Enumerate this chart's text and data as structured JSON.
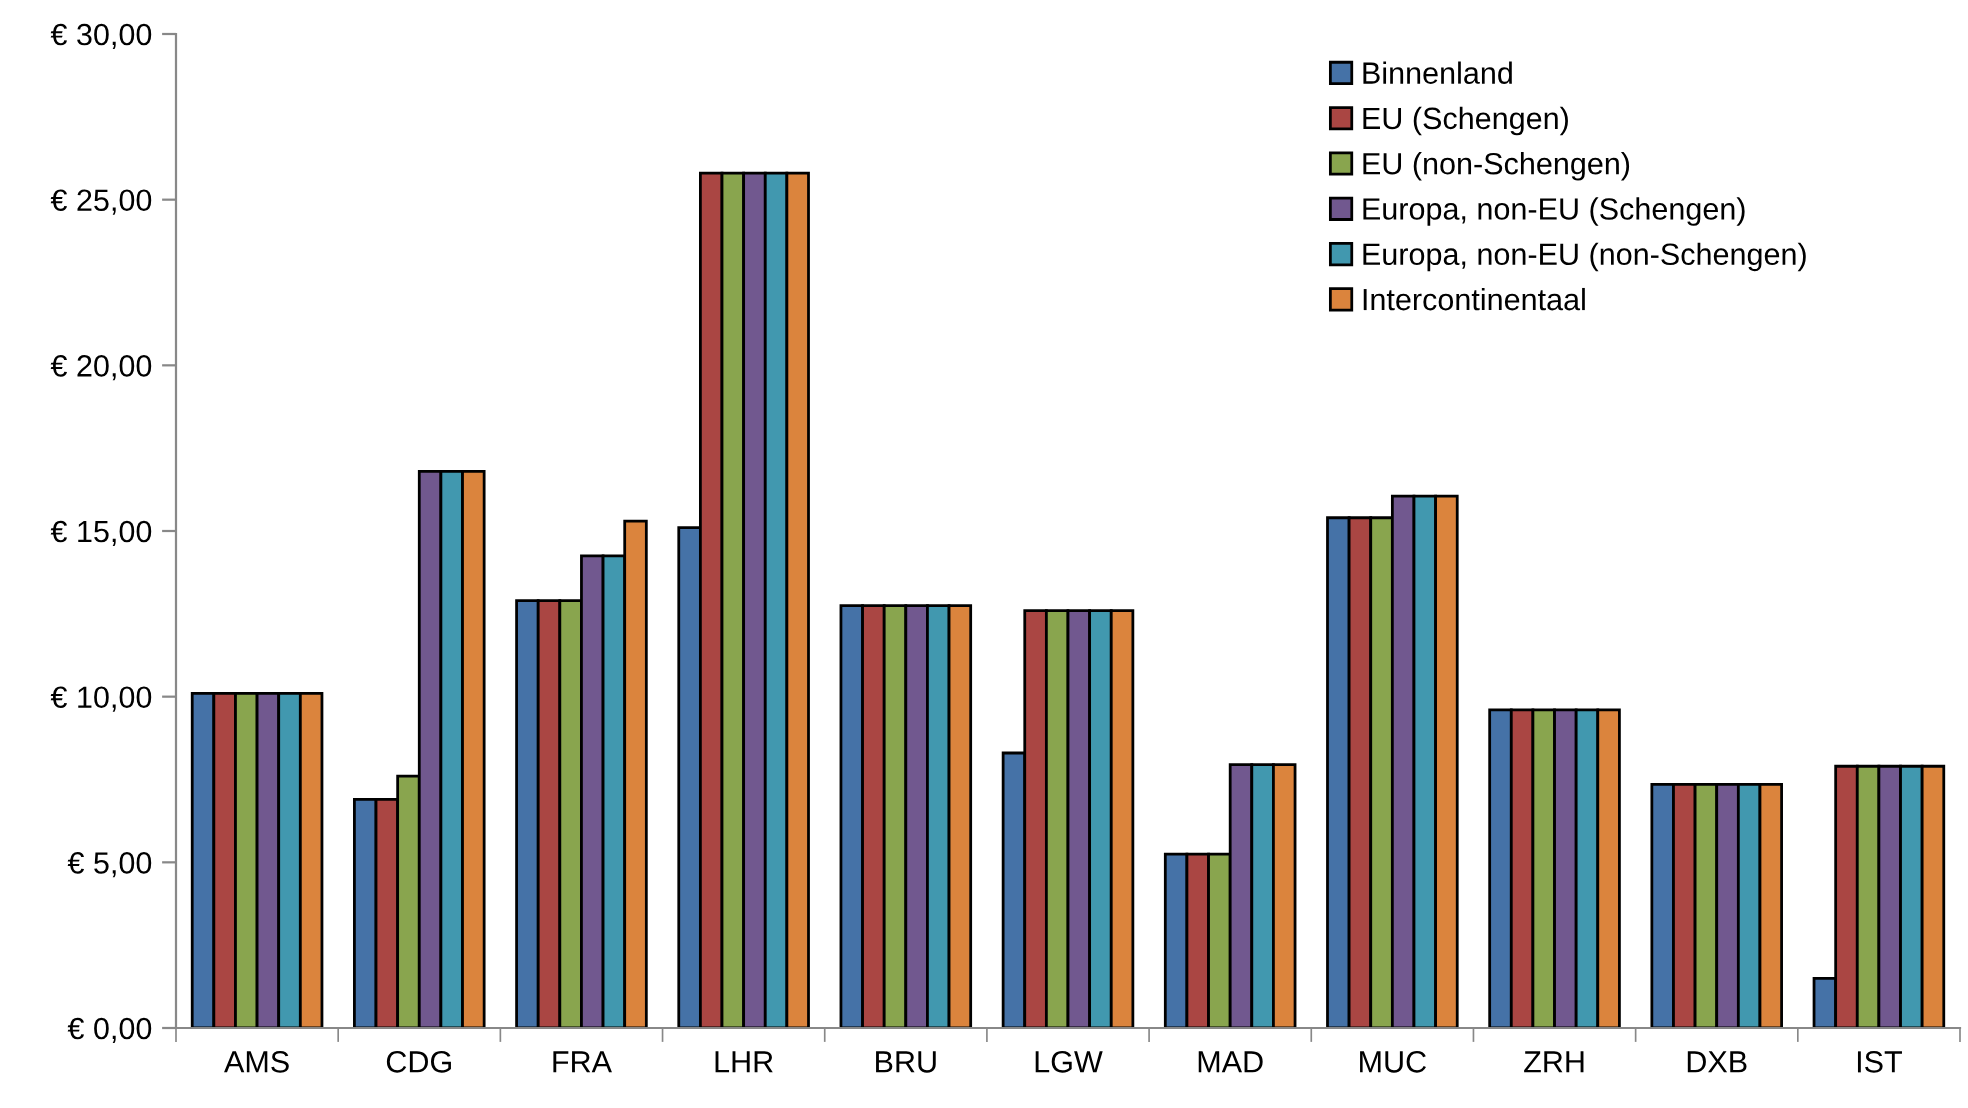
{
  "chart_data": {
    "type": "bar",
    "categories": [
      "AMS",
      "CDG",
      "FRA",
      "LHR",
      "BRU",
      "LGW",
      "MAD",
      "MUC",
      "ZRH",
      "DXB",
      "IST"
    ],
    "series": [
      {
        "name": "Binnenland",
        "color": "#4572a7",
        "values": [
          10.1,
          6.9,
          12.9,
          15.1,
          12.75,
          8.3,
          5.25,
          15.4,
          9.6,
          7.35,
          1.5
        ]
      },
      {
        "name": "EU (Schengen)",
        "color": "#aa4643",
        "values": [
          10.1,
          6.9,
          12.9,
          25.8,
          12.75,
          12.6,
          5.25,
          15.4,
          9.6,
          7.35,
          7.9
        ]
      },
      {
        "name": "EU (non-Schengen)",
        "color": "#89a54e",
        "values": [
          10.1,
          7.6,
          12.9,
          25.8,
          12.75,
          12.6,
          5.25,
          15.4,
          9.6,
          7.35,
          7.9
        ]
      },
      {
        "name": "Europa, non-EU (Schengen)",
        "color": "#71588f",
        "values": [
          10.1,
          16.8,
          14.25,
          25.8,
          12.75,
          12.6,
          7.95,
          16.05,
          9.6,
          7.35,
          7.9
        ]
      },
      {
        "name": "Europa, non-EU (non-Schengen)",
        "color": "#4198af",
        "values": [
          10.1,
          16.8,
          14.25,
          25.8,
          12.75,
          12.6,
          7.95,
          16.05,
          9.6,
          7.35,
          7.9
        ]
      },
      {
        "name": "Intercontinentaal",
        "color": "#db843d",
        "values": [
          10.1,
          16.8,
          15.3,
          25.8,
          12.75,
          12.6,
          7.95,
          16.05,
          9.6,
          7.35,
          7.9
        ]
      }
    ],
    "ylim": [
      0,
      30
    ],
    "yticks": [
      {
        "value": 0,
        "label": "€ 0,00"
      },
      {
        "value": 5,
        "label": "€ 5,00"
      },
      {
        "value": 10,
        "label": "€ 10,00"
      },
      {
        "value": 15,
        "label": "€ 15,00"
      },
      {
        "value": 20,
        "label": "€ 20,00"
      },
      {
        "value": 25,
        "label": "€ 25,00"
      },
      {
        "value": 30,
        "label": "€ 30,00"
      }
    ],
    "grid": false,
    "legend": "top right"
  }
}
